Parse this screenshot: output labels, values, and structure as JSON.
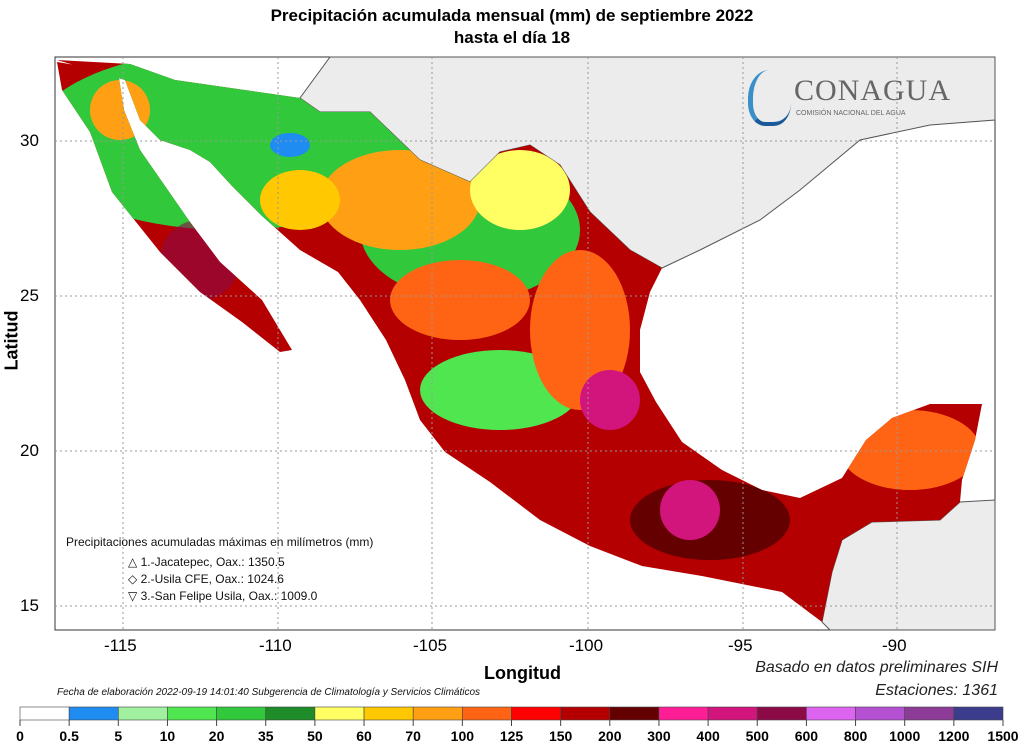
{
  "title_line1": "Precipitación acumulada mensual (mm) de septiembre 2022",
  "title_line2": "hasta el día 18",
  "logo": {
    "name": "CONAGUA",
    "subtitle": "COMISIÓN NACIONAL DEL AGUA"
  },
  "x_axis": {
    "label": "Longitud",
    "ticks": [
      "-115",
      "-110",
      "-105",
      "-100",
      "-95",
      "-90"
    ]
  },
  "y_axis": {
    "label": "Latitud",
    "ticks": [
      "30",
      "25",
      "20",
      "15"
    ]
  },
  "legend_box": {
    "heading": "Precipitaciones acumuladas máximas en milímetros (mm)",
    "items": [
      {
        "symbol": "△",
        "text": "1.-Jacatepec, Oax.: 1350.5"
      },
      {
        "symbol": "◇",
        "text": "2.-Usila CFE, Oax.: 1024.6"
      },
      {
        "symbol": "▽",
        "text": "3.-San Felipe Usila, Oax.: 1009.0"
      }
    ]
  },
  "footer": {
    "date_note": "Fecha de elaboración 2022-09-19 14:01:40 Subgerencia de Climatología y Servicios Climáticos",
    "source": "Basado en datos preliminares SIH",
    "stations": "Estaciones:  1361"
  },
  "colorbar": {
    "labels": [
      "0",
      "0.5",
      "5",
      "10",
      "20",
      "35",
      "50",
      "60",
      "70",
      "100",
      "125",
      "150",
      "200",
      "300",
      "400",
      "500",
      "600",
      "800",
      "1000",
      "1200",
      "1500"
    ],
    "colors": [
      "#ffffff",
      "#1e8cf0",
      "#a0f0a0",
      "#50e650",
      "#32c83c",
      "#1e8c28",
      "#ffff64",
      "#ffc800",
      "#ffa014",
      "#ff6414",
      "#ff0000",
      "#b40000",
      "#640000",
      "#ff1e96",
      "#d2147d",
      "#8c0a46",
      "#dc64f0",
      "#b450d2",
      "#8c3c96",
      "#3c3c8c"
    ]
  }
}
